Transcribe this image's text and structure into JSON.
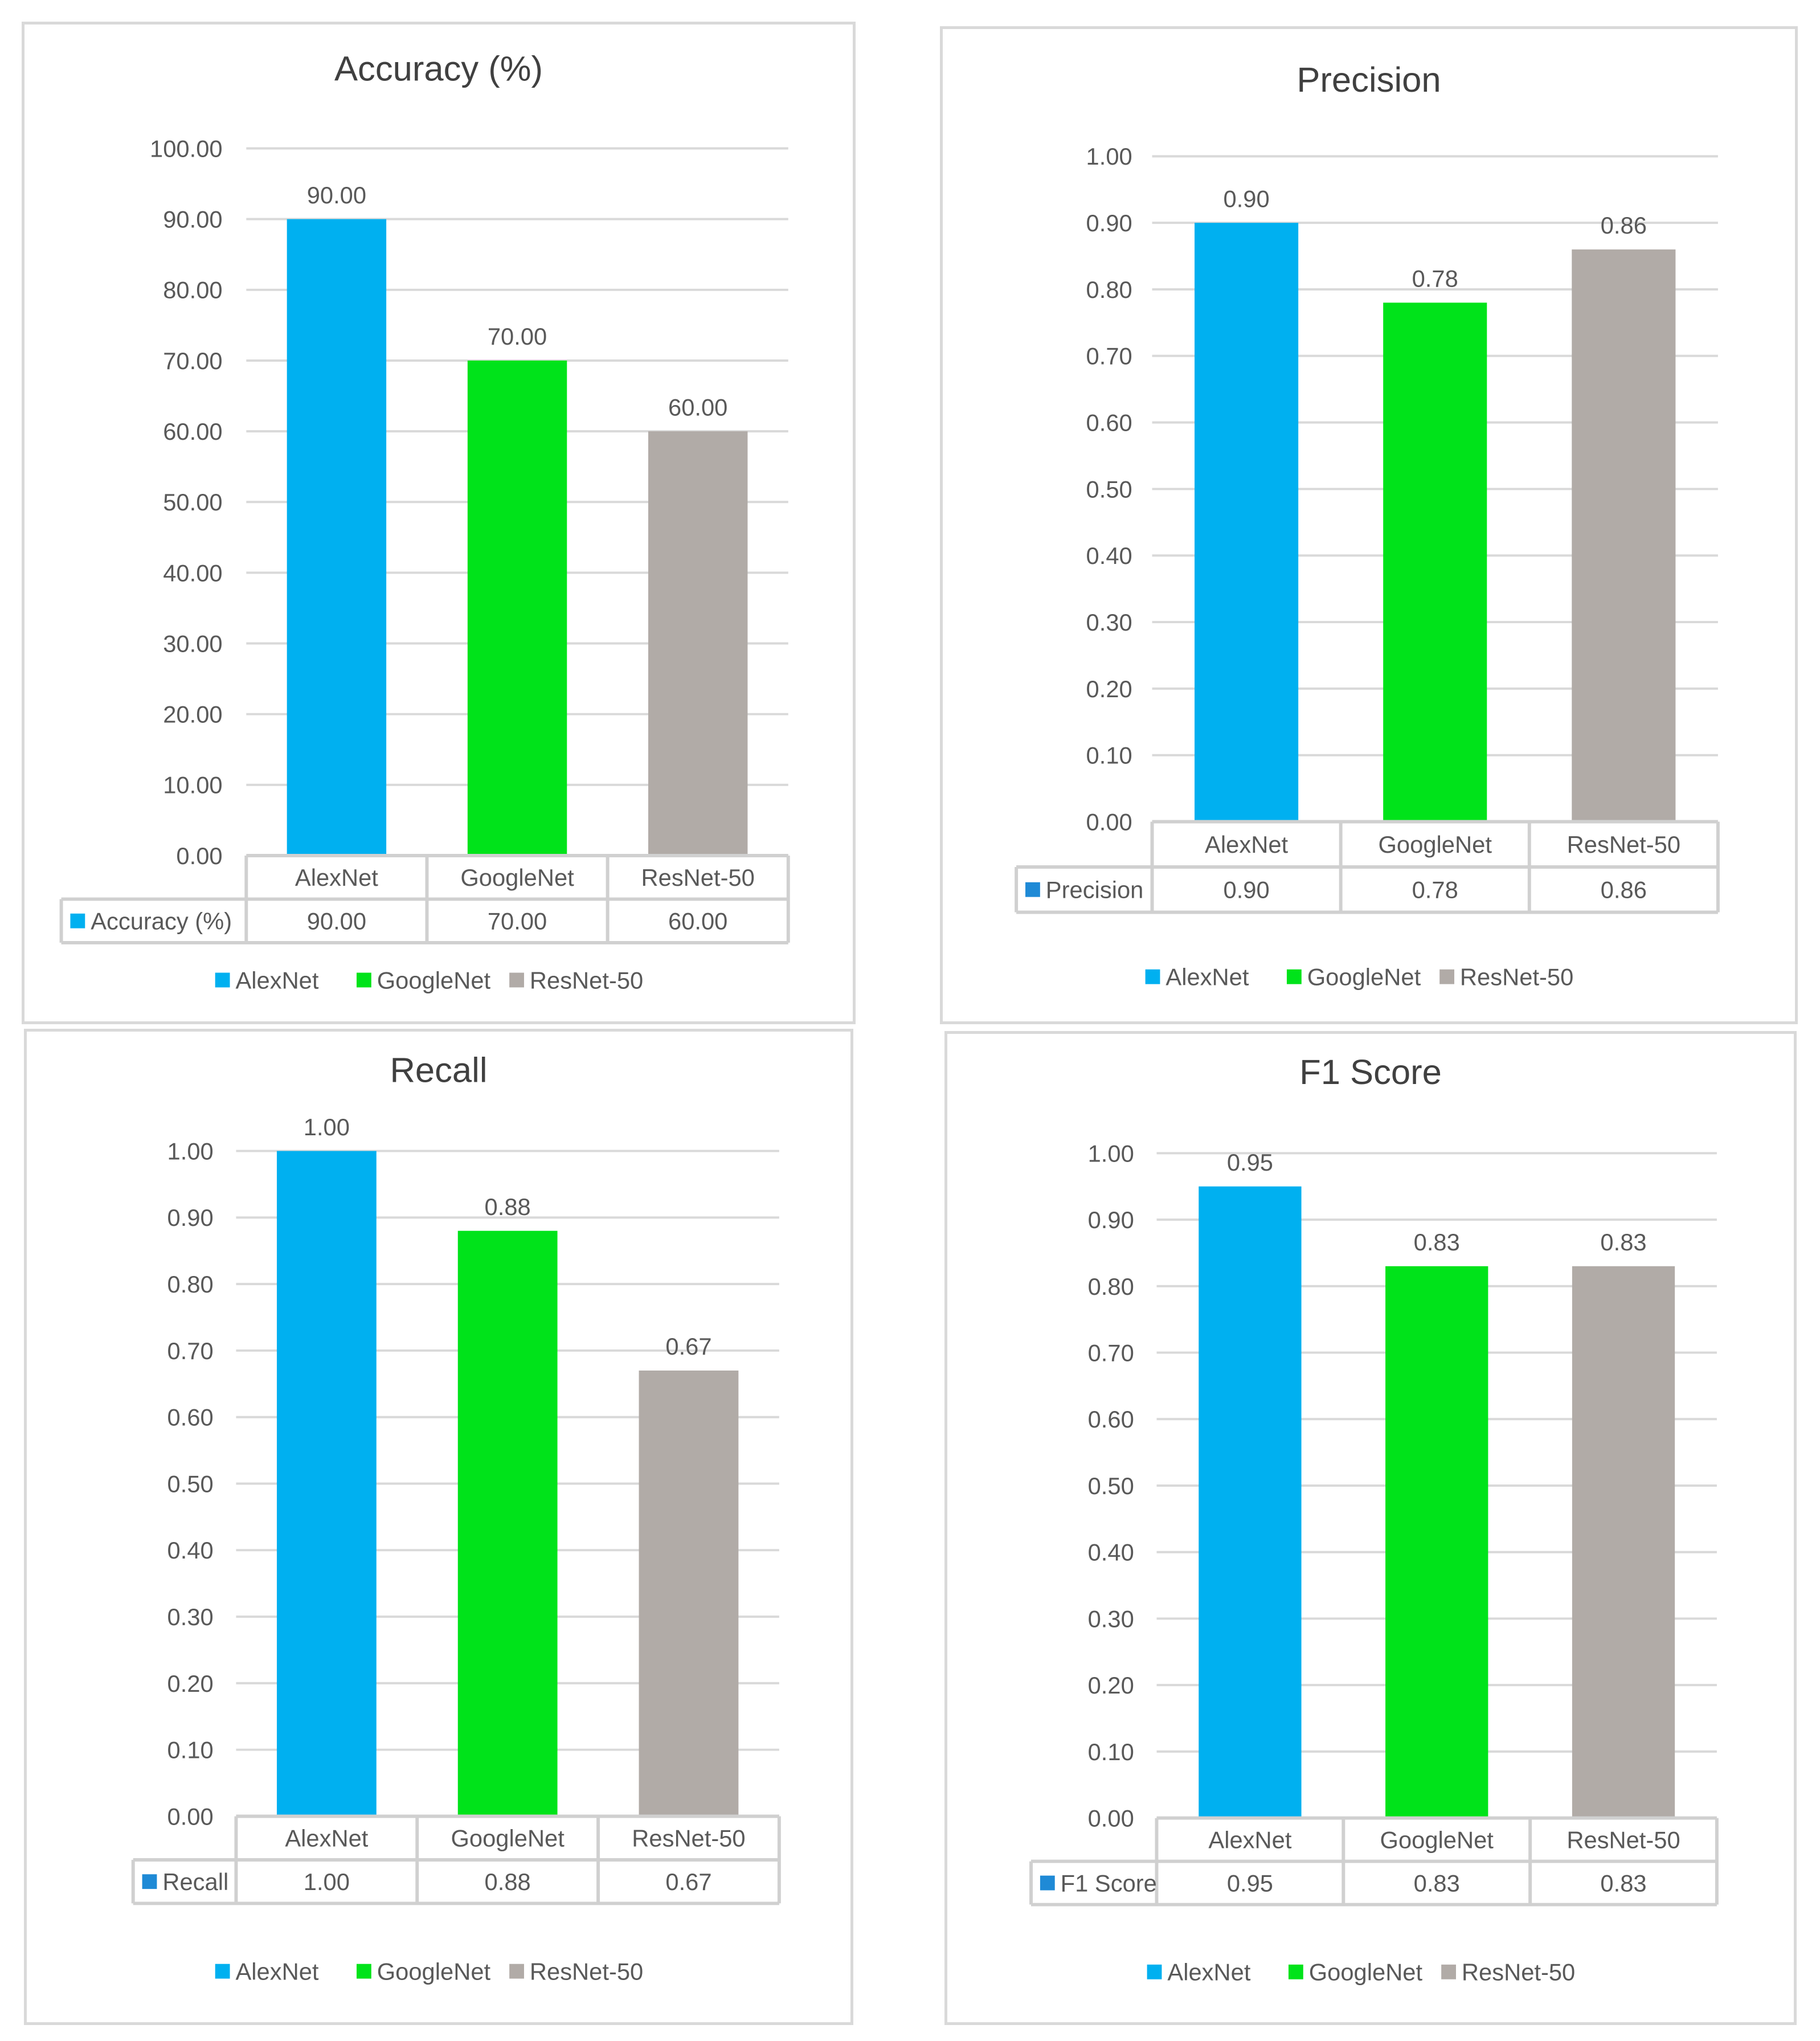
{
  "colors": {
    "AlexNet": "#00b0f0",
    "GoogleNet": "#00e31a",
    "ResNet-50": "#b1aba7",
    "grid": "#d9d9d9",
    "text": "#595959",
    "title": "#404040"
  },
  "chart_data": [
    {
      "type": "bar",
      "title": "Accuracy (%)",
      "categories": [
        "AlexNet",
        "GoogleNet",
        "ResNet-50"
      ],
      "values": [
        90.0,
        70.0,
        60.0
      ],
      "value_labels": [
        "90.00",
        "70.00",
        "60.00"
      ],
      "ylim": [
        0,
        100
      ],
      "ystep": 10,
      "tick_labels": [
        "0.00",
        "10.00",
        "20.00",
        "30.00",
        "40.00",
        "50.00",
        "60.00",
        "70.00",
        "80.00",
        "90.00",
        "100.00"
      ],
      "table": {
        "series_name": "Accuracy (%)",
        "marker_color": "#00b0f0",
        "values": [
          "90.00",
          "70.00",
          "60.00"
        ]
      },
      "legend": [
        "AlexNet",
        "GoogleNet",
        "ResNet-50"
      ],
      "legend_position": "bottom"
    },
    {
      "type": "bar",
      "title": "Precision",
      "categories": [
        "AlexNet",
        "GoogleNet",
        "ResNet-50"
      ],
      "values": [
        0.9,
        0.78,
        0.86
      ],
      "value_labels": [
        "0.90",
        "0.78",
        "0.86"
      ],
      "ylim": [
        0,
        1
      ],
      "ystep": 0.1,
      "tick_labels": [
        "0.00",
        "0.10",
        "0.20",
        "0.30",
        "0.40",
        "0.50",
        "0.60",
        "0.70",
        "0.80",
        "0.90",
        "1.00"
      ],
      "table": {
        "series_name": "Precision",
        "marker_color": "#1f8ad6",
        "values": [
          "0.90",
          "0.78",
          "0.86"
        ]
      },
      "legend": [
        "AlexNet",
        "GoogleNet",
        "ResNet-50"
      ],
      "legend_position": "bottom"
    },
    {
      "type": "bar",
      "title": "Recall",
      "categories": [
        "AlexNet",
        "GoogleNet",
        "ResNet-50"
      ],
      "values": [
        1.0,
        0.88,
        0.67
      ],
      "value_labels": [
        "1.00",
        "0.88",
        "0.67"
      ],
      "ylim": [
        0,
        1
      ],
      "ystep": 0.1,
      "tick_labels": [
        "0.00",
        "0.10",
        "0.20",
        "0.30",
        "0.40",
        "0.50",
        "0.60",
        "0.70",
        "0.80",
        "0.90",
        "1.00"
      ],
      "table": {
        "series_name": "Recall",
        "marker_color": "#1f8ad6",
        "values": [
          "1.00",
          "0.88",
          "0.67"
        ]
      },
      "legend": [
        "AlexNet",
        "GoogleNet",
        "ResNet-50"
      ],
      "legend_position": "bottom"
    },
    {
      "type": "bar",
      "title": "F1 Score",
      "categories": [
        "AlexNet",
        "GoogleNet",
        "ResNet-50"
      ],
      "values": [
        0.95,
        0.83,
        0.83
      ],
      "value_labels": [
        "0.95",
        "0.83",
        "0.83"
      ],
      "ylim": [
        0,
        1
      ],
      "ystep": 0.1,
      "tick_labels": [
        "0.00",
        "0.10",
        "0.20",
        "0.30",
        "0.40",
        "0.50",
        "0.60",
        "0.70",
        "0.80",
        "0.90",
        "1.00"
      ],
      "table": {
        "series_name": "F1 Score",
        "marker_color": "#1f8ad6",
        "values": [
          "0.95",
          "0.83",
          "0.83"
        ]
      },
      "legend": [
        "AlexNet",
        "GoogleNet",
        "ResNet-50"
      ],
      "legend_position": "bottom"
    }
  ]
}
